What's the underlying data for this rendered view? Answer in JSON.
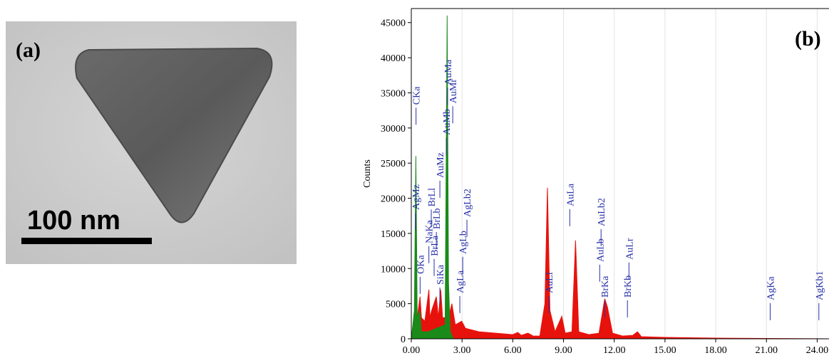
{
  "panel_a": {
    "label": "(a)",
    "scale_bar": "100 nm"
  },
  "chart_data": {
    "type": "area",
    "panel_label": "(b)",
    "y_label": "Counts",
    "xlim": [
      0,
      24.7
    ],
    "ylim": [
      0,
      47000
    ],
    "xticks": [
      {
        "value": 0,
        "label": "0.00"
      },
      {
        "value": 3,
        "label": "3.00"
      },
      {
        "value": 6,
        "label": "6.00"
      },
      {
        "value": 9,
        "label": "9.00"
      },
      {
        "value": 12,
        "label": "12.00"
      },
      {
        "value": 15,
        "label": "15.00"
      },
      {
        "value": 18,
        "label": "18.00"
      },
      {
        "value": 21,
        "label": "21.00"
      },
      {
        "value": 24,
        "label": "24.00"
      }
    ],
    "yticks": [
      0,
      5000,
      10000,
      15000,
      20000,
      25000,
      30000,
      35000,
      40000,
      45000
    ],
    "grid": true,
    "series": [
      {
        "color": "#e8120c",
        "x": [
          0,
          0.1,
          0.27,
          0.35,
          0.52,
          0.6,
          0.8,
          1.04,
          1.1,
          1.2,
          1.48,
          1.6,
          1.74,
          1.85,
          2.0,
          2.12,
          2.2,
          2.4,
          2.6,
          2.98,
          3.2,
          4,
          5,
          6,
          6.3,
          6.5,
          6.9,
          7.2,
          7.6,
          7.9,
          8.05,
          8.2,
          8.5,
          8.9,
          9.1,
          9.5,
          9.71,
          9.9,
          10.5,
          11.1,
          11.44,
          11.6,
          11.9,
          12.5,
          13.1,
          13.38,
          13.6,
          15,
          18,
          21,
          24.7
        ],
        "values": [
          0,
          2000,
          4000,
          3000,
          6000,
          3000,
          2500,
          7000,
          3000,
          4000,
          6000,
          3000,
          7000,
          3000,
          3000,
          8000,
          3000,
          5000,
          2000,
          2500,
          1500,
          1000,
          800,
          600,
          900,
          500,
          800,
          400,
          400,
          5000,
          21500,
          4000,
          1000,
          3200,
          800,
          1000,
          14000,
          1000,
          600,
          800,
          5700,
          4500,
          800,
          400,
          500,
          1000,
          300,
          200,
          100,
          50,
          0
        ]
      },
      {
        "color": "#1a8a1a",
        "x": [
          0,
          0.18,
          0.27,
          0.35,
          0.5,
          0.6,
          1.0,
          2.0,
          2.12,
          2.2,
          2.3,
          2.5
        ],
        "values": [
          0,
          4000,
          26000,
          3000,
          4000,
          1000,
          1000,
          2000,
          46000,
          8000,
          1000,
          0
        ]
      }
    ],
    "annotations": [
      {
        "text": "CKa",
        "x": 0.28,
        "y": 33300
      },
      {
        "text": "AgMz",
        "x": 0.25,
        "y": 18350
      },
      {
        "text": "OKa",
        "x": 0.52,
        "y": 9230
      },
      {
        "text": "NaKa",
        "x": 1.04,
        "y": 13590
      },
      {
        "text": "BrLl",
        "x": 1.18,
        "y": 18800
      },
      {
        "text": "BrLa",
        "x": 1.35,
        "y": 11770
      },
      {
        "text": "BrLb",
        "x": 1.48,
        "y": 15600
      },
      {
        "text": "SiKa",
        "x": 1.69,
        "y": 7700
      },
      {
        "text": "AuMz",
        "x": 1.69,
        "y": 22900
      },
      {
        "text": "AuMb",
        "x": 2.07,
        "y": 29000
      },
      {
        "text": "AuMa",
        "x": 2.15,
        "y": 36100
      },
      {
        "text": "AuMr",
        "x": 2.45,
        "y": 33500
      },
      {
        "text": "AgLa",
        "x": 2.87,
        "y": 6490
      },
      {
        "text": "AgLb",
        "x": 3.04,
        "y": 12070
      },
      {
        "text": "AgLb2",
        "x": 3.29,
        "y": 17340
      },
      {
        "text": "AuLl",
        "x": 8.14,
        "y": 6490
      },
      {
        "text": "AuLa",
        "x": 9.37,
        "y": 18860
      },
      {
        "text": "AuLb",
        "x": 11.14,
        "y": 10950
      },
      {
        "text": "AuLb2",
        "x": 11.22,
        "y": 16020
      },
      {
        "text": "BrKa",
        "x": 11.43,
        "y": 5880
      },
      {
        "text": "BrKb",
        "x": 12.78,
        "y": 5880
      },
      {
        "text": "AuLr",
        "x": 12.87,
        "y": 11260
      },
      {
        "text": "AgKa",
        "x": 21.22,
        "y": 5480
      },
      {
        "text": "AgKb1",
        "x": 24.1,
        "y": 5480
      }
    ]
  }
}
